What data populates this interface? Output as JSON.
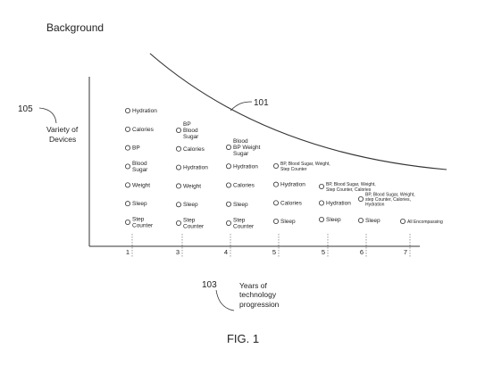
{
  "figure": {
    "title": "Background",
    "label": "FIG. 1",
    "curve_ref": "101",
    "y_axis_ref": "105",
    "y_axis_label": [
      "Variety of",
      "Devices"
    ],
    "x_axis_ref": "103",
    "x_axis_label": [
      "Years of",
      "technology",
      "progression"
    ],
    "ticks": [
      "1",
      "3",
      "4",
      "5",
      "5",
      "6",
      "7"
    ]
  },
  "columns": [
    [
      {
        "lines": [
          "Hydration"
        ]
      },
      {
        "lines": [
          "Calories"
        ]
      },
      {
        "lines": [
          "BP"
        ]
      },
      {
        "lines": [
          "Blood",
          "Sugar"
        ]
      },
      {
        "lines": [
          "Weight"
        ]
      },
      {
        "lines": [
          "Sleep"
        ]
      },
      {
        "lines": [
          "Step",
          "Counter"
        ]
      }
    ],
    [
      {
        "lines": [
          "BP",
          "Blood",
          "Sugar"
        ]
      },
      {
        "lines": [
          "Calories"
        ]
      },
      {
        "lines": [
          "Hydration"
        ]
      },
      {
        "lines": [
          "Weight"
        ]
      },
      {
        "lines": [
          "Sleep"
        ]
      },
      {
        "lines": [
          "Step",
          "Counter"
        ]
      }
    ],
    [
      {
        "lines": [
          "Blood",
          "BP Weight",
          "Sugar"
        ]
      },
      {
        "lines": [
          "Hydration"
        ]
      },
      {
        "lines": [
          "Calories"
        ]
      },
      {
        "lines": [
          "Sleep"
        ]
      },
      {
        "lines": [
          "Step",
          "Counter"
        ]
      }
    ],
    [
      {
        "lines": [
          "BP, Blood Sugar, Weight,",
          "Step Counter"
        ]
      },
      {
        "lines": [
          "Hydration"
        ]
      },
      {
        "lines": [
          "Calories"
        ]
      },
      {
        "lines": [
          "Sleep"
        ]
      }
    ],
    [
      {
        "lines": [
          "BP, Blood Sugar, Weight,",
          "Step Counter, Calories"
        ]
      },
      {
        "lines": [
          "Hydration"
        ]
      },
      {
        "lines": [
          "Sleep"
        ]
      }
    ],
    [
      {
        "lines": [
          "BP, Blood Sugar, Weight,",
          "step Counter, Calories,",
          "Hydration"
        ]
      },
      {
        "lines": [
          "Sleep"
        ]
      }
    ],
    [
      {
        "lines": [
          "All Encompassing"
        ]
      }
    ]
  ]
}
